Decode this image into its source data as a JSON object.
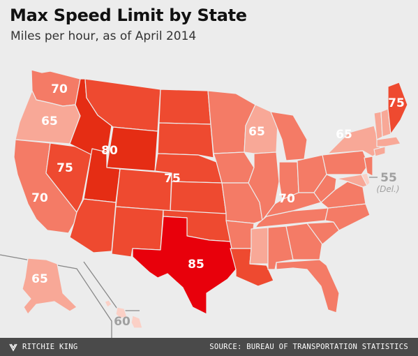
{
  "title": "Max Speed Limit by State",
  "subtitle": "Miles per hour, as of April 2014",
  "footer": {
    "credit": "RITCHIE KING",
    "source": "SOURCE: BUREAU OF TRANSPORTATION STATISTICS"
  },
  "legend_scale": {
    "55": "#fbd0c6",
    "60": "#fbd0c6",
    "65": "#f8a897",
    "70": "#f47b66",
    "75": "#ee4a30",
    "80": "#e52d14",
    "85": "#e8000b"
  },
  "labels": {
    "wa": "70",
    "or": "65",
    "id": "80",
    "ca": "70",
    "nv": "75",
    "central": "75",
    "wi": "65",
    "ny": "65",
    "me": "75",
    "east": "70",
    "tx": "85",
    "ak": "65",
    "hi": "60",
    "del": "55",
    "del_note": "(Del.)"
  }
}
